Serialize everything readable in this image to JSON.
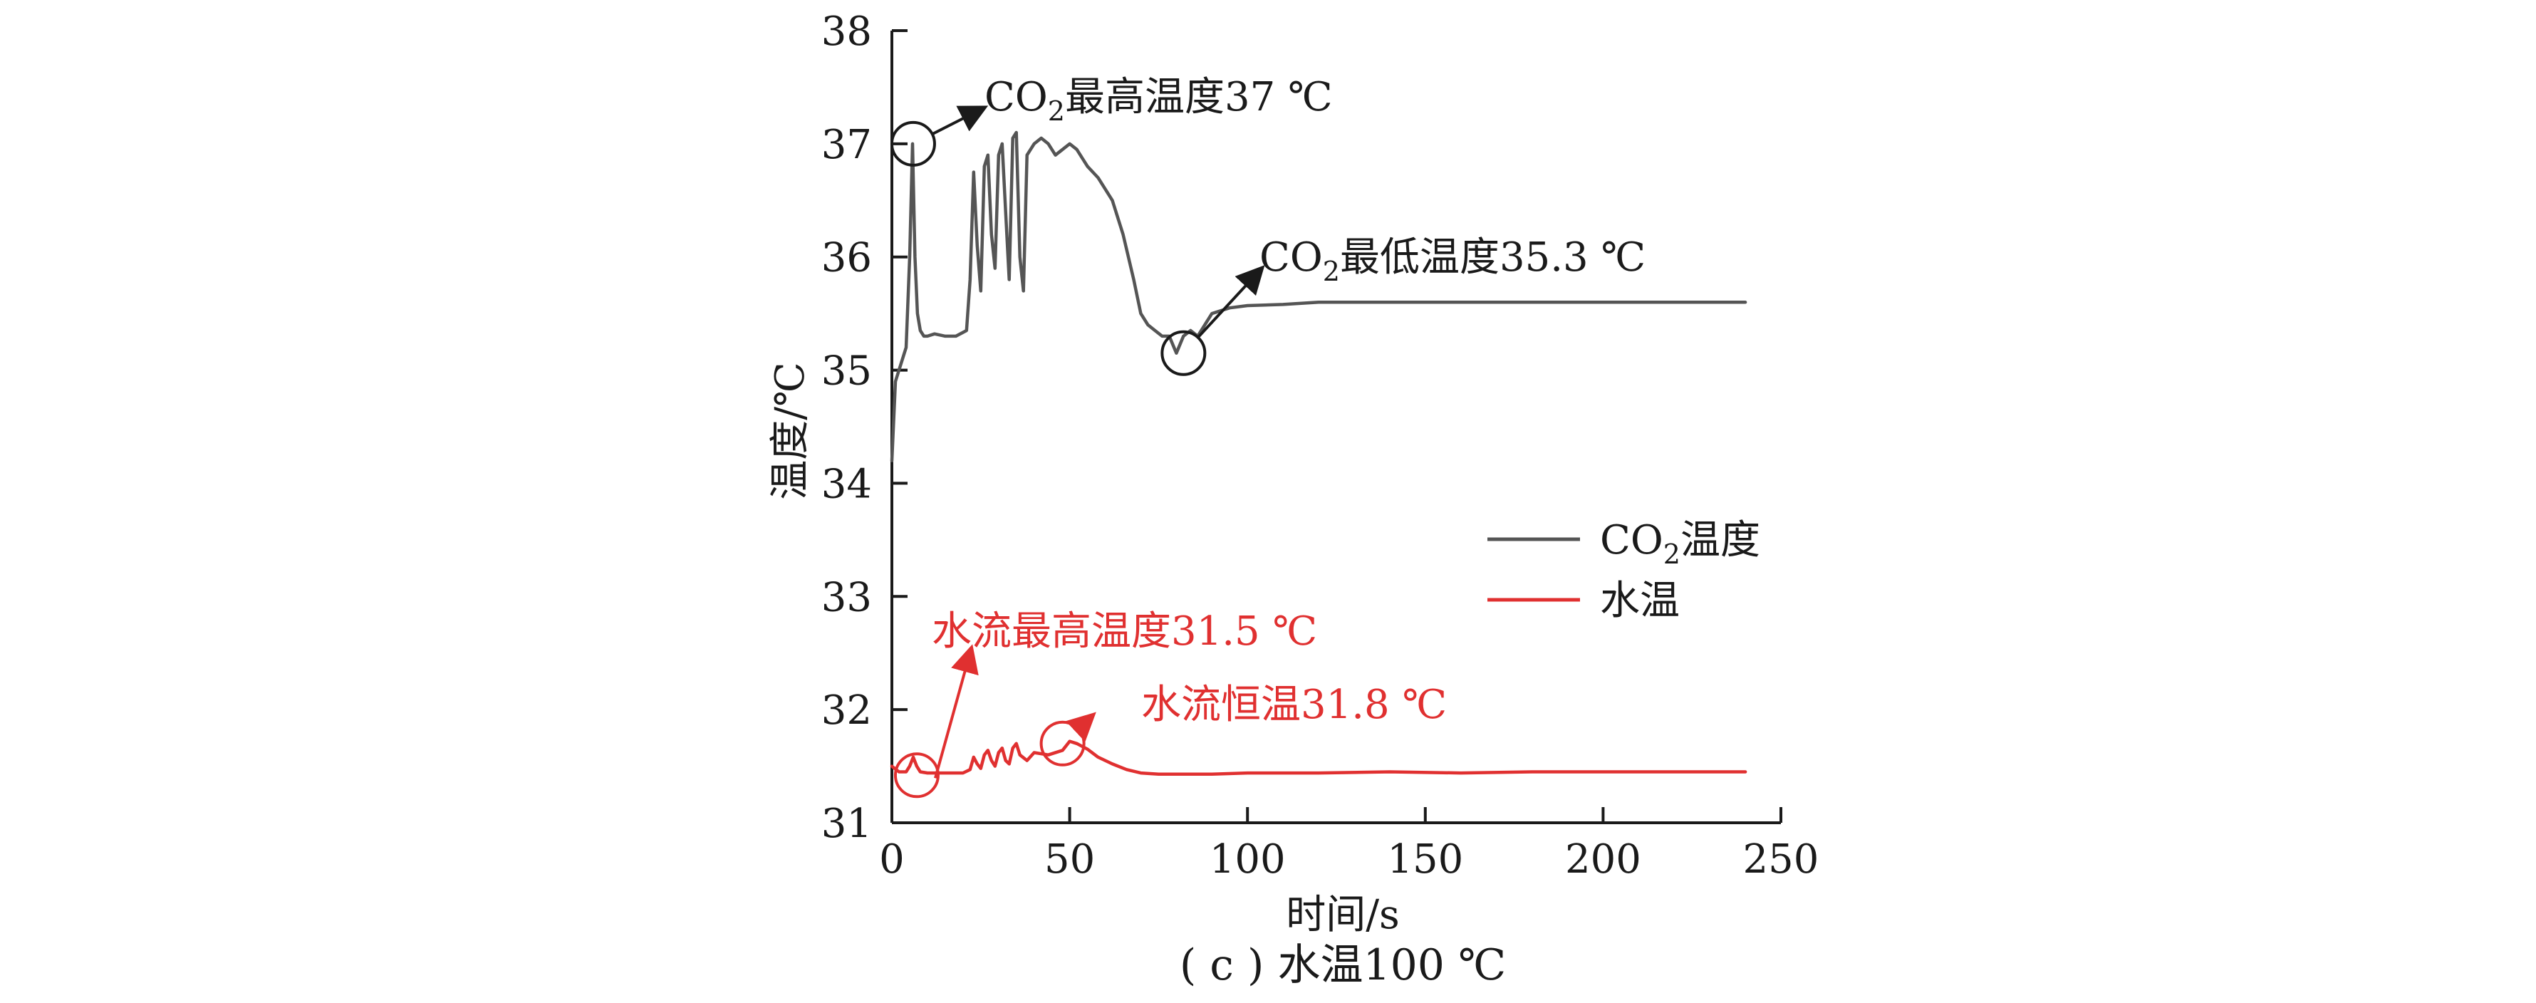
{
  "chart_data": {
    "type": "line",
    "caption": "( c ) 水温100 ℃",
    "xlabel": "时间/s",
    "ylabel": "温度/℃",
    "xlim": [
      0,
      250
    ],
    "ylim": [
      31,
      38
    ],
    "xticks": [
      "0",
      "50",
      "100",
      "150",
      "200",
      "250"
    ],
    "yticks": [
      "31",
      "32",
      "33",
      "34",
      "35",
      "36",
      "37",
      "38"
    ],
    "grid": false,
    "legend_position": "middle-right",
    "series": [
      {
        "name": "CO2温度",
        "color": "#555555",
        "x": [
          0,
          1,
          2,
          3,
          4,
          5,
          5.8,
          6.5,
          7.2,
          8,
          9,
          10,
          12,
          15,
          18,
          21,
          22,
          23,
          24,
          25,
          26,
          27,
          28,
          29,
          30,
          31,
          32,
          33,
          34,
          35,
          36,
          37,
          38,
          40,
          42,
          44,
          46,
          48,
          50,
          52,
          55,
          58,
          62,
          65,
          68,
          70,
          72,
          74,
          76,
          78,
          80,
          82,
          84,
          86,
          88,
          90,
          95,
          100,
          110,
          120,
          140,
          160,
          180,
          200,
          220,
          240
        ],
        "y": [
          34.2,
          34.9,
          35.0,
          35.1,
          35.2,
          36.0,
          37.0,
          36.0,
          35.5,
          35.35,
          35.3,
          35.3,
          35.32,
          35.3,
          35.3,
          35.35,
          35.8,
          36.75,
          36.1,
          35.7,
          36.8,
          36.9,
          36.2,
          35.9,
          36.9,
          37.0,
          36.4,
          35.8,
          37.05,
          37.1,
          36.0,
          35.7,
          36.9,
          37.0,
          37.05,
          37.0,
          36.9,
          36.95,
          37.0,
          36.95,
          36.8,
          36.7,
          36.5,
          36.2,
          35.8,
          35.5,
          35.4,
          35.35,
          35.3,
          35.3,
          35.15,
          35.3,
          35.35,
          35.3,
          35.4,
          35.5,
          35.55,
          35.57,
          35.58,
          35.6,
          35.6,
          35.6,
          35.6,
          35.6,
          35.6,
          35.6
        ]
      },
      {
        "name": "水温",
        "color": "#e03030",
        "x": [
          0,
          2,
          4,
          5,
          6,
          7,
          8,
          10,
          15,
          20,
          22,
          23,
          24,
          25,
          26,
          27,
          28,
          29,
          30,
          31,
          32,
          33,
          34,
          35,
          36,
          38,
          40,
          44,
          48,
          50,
          52,
          55,
          58,
          62,
          66,
          70,
          75,
          80,
          90,
          100,
          120,
          140,
          160,
          180,
          200,
          220,
          240
        ],
        "y": [
          31.5,
          31.45,
          31.45,
          31.5,
          31.58,
          31.5,
          31.45,
          31.44,
          31.44,
          31.44,
          31.47,
          31.58,
          31.52,
          31.48,
          31.6,
          31.64,
          31.55,
          31.5,
          31.62,
          31.66,
          31.55,
          31.52,
          31.66,
          31.7,
          31.6,
          31.55,
          31.62,
          31.6,
          31.64,
          31.72,
          31.7,
          31.65,
          31.58,
          31.52,
          31.47,
          31.44,
          31.43,
          31.43,
          31.43,
          31.44,
          31.44,
          31.45,
          31.44,
          31.45,
          31.45,
          31.45,
          31.45
        ]
      }
    ],
    "annotations": [
      {
        "id": "co2-max",
        "text_pre": "CO",
        "sub": "2",
        "text_post": "最高温度37 ℃",
        "color": "#1a1a1a",
        "x": 6,
        "y": 37.0
      },
      {
        "id": "co2-min",
        "text_pre": "CO",
        "sub": "2",
        "text_post": "最低温度35.3 ℃",
        "color": "#1a1a1a",
        "x": 82,
        "y": 35.15
      },
      {
        "id": "water-max",
        "text": "水流最高温度31.5 ℃",
        "color": "#e03030",
        "x": 7,
        "y": 31.42
      },
      {
        "id": "water-const",
        "text": "水流恒温31.8 ℃",
        "color": "#e03030",
        "x": 48,
        "y": 31.7
      }
    ],
    "legend": [
      {
        "label_pre": "CO",
        "sub": "2",
        "label_post": "温度",
        "color": "#555555"
      },
      {
        "label": "水温",
        "color": "#e03030"
      }
    ]
  }
}
